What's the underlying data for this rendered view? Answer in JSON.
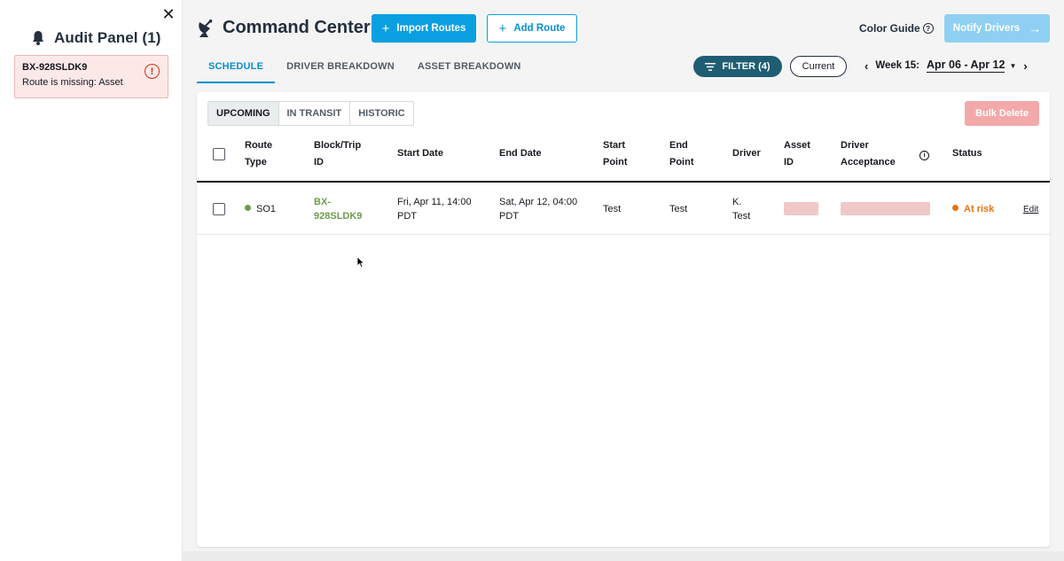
{
  "sidebar": {
    "title": "Audit Panel (1)",
    "alerts": [
      {
        "id": "BX-928SLDK9",
        "message": "Route is missing: Asset"
      }
    ]
  },
  "header": {
    "app_name": "Command Center",
    "import_label": "Import Routes",
    "add_label": "Add Route",
    "color_guide_label": "Color Guide",
    "notify_label": "Notify Drivers"
  },
  "tabs": [
    "SCHEDULE",
    "DRIVER BREAKDOWN",
    "ASSET BREAKDOWN"
  ],
  "filter": {
    "label": "FILTER (4)",
    "current_label": "Current"
  },
  "week": {
    "label": "Week 15:",
    "range": "Apr 06 - Apr 12"
  },
  "segments": [
    "UPCOMING",
    "IN TRANSIT",
    "HISTORIC"
  ],
  "bulk_delete_label": "Bulk Delete",
  "table": {
    "headers": {
      "route_type": [
        "Route",
        "Type"
      ],
      "trip_id": [
        "Block/Trip",
        "ID"
      ],
      "start_date": "Start Date",
      "end_date": "End Date",
      "start_point": [
        "Start",
        "Point"
      ],
      "end_point": [
        "End",
        "Point"
      ],
      "driver": "Driver",
      "asset_id": [
        "Asset",
        "ID"
      ],
      "acceptance": [
        "Driver",
        "Acceptance"
      ],
      "status": "Status"
    },
    "rows": [
      {
        "route_type": "SO1",
        "trip_id": [
          "BX-",
          "928SLDK9"
        ],
        "start_date": [
          "Fri, Apr 11, 14:00",
          "PDT"
        ],
        "end_date": [
          "Sat, Apr 12, 04:00",
          "PDT"
        ],
        "start_point": "Test",
        "end_point": "Test",
        "driver": [
          "K.",
          "Test"
        ],
        "status": "At risk",
        "edit_label": "Edit"
      }
    ]
  },
  "colors": {
    "primary": "#0a9fe0",
    "brand_dark": "#232f3e",
    "filter_bg": "#1f5d73",
    "route_dot": "#6c9c4a",
    "status_at_risk": "#ec7211",
    "alert_bg": "#fde8e8",
    "error": "#d13212"
  }
}
